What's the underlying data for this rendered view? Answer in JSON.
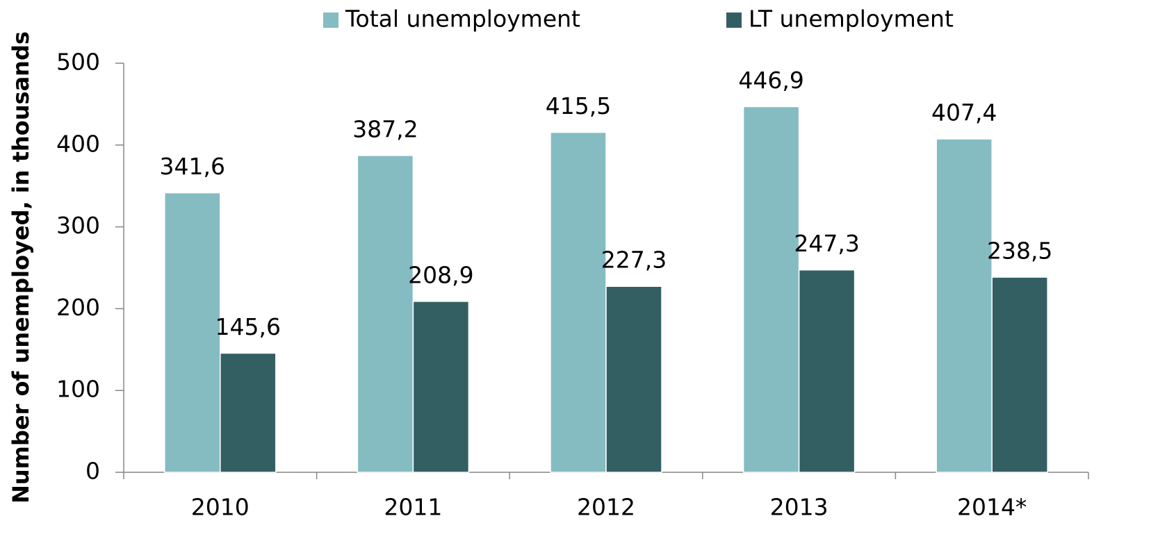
{
  "chart_data": {
    "type": "bar",
    "y_label": "Number of unemployed, in thousands",
    "categories": [
      "2010",
      "2011",
      "2012",
      "2013",
      "2014*"
    ],
    "series": [
      {
        "name": "Total unemployment",
        "color": "#84bcc2",
        "values": [
          341.6,
          387.2,
          415.5,
          446.9,
          407.4
        ],
        "value_labels": [
          "341,6",
          "387,2",
          "415,5",
          "446,9",
          "407,4"
        ]
      },
      {
        "name": "LT unemployment",
        "color": "#335f63",
        "values": [
          145.6,
          208.9,
          227.3,
          247.3,
          238.5
        ],
        "value_labels": [
          "145,6",
          "208,9",
          "227,3",
          "247,3",
          "238,5"
        ]
      }
    ],
    "ylim": [
      0,
      500
    ],
    "yticks": [
      0,
      100,
      200,
      300,
      400,
      500
    ],
    "legend": "top"
  }
}
